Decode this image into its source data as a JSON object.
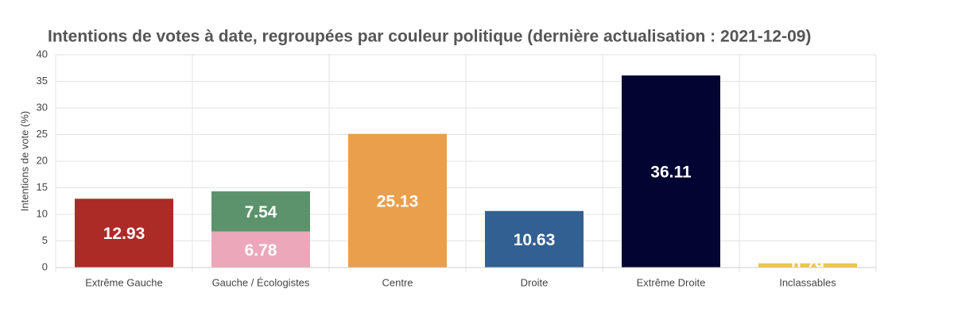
{
  "chart_data": {
    "type": "bar",
    "stacked": true,
    "title": "Intentions de votes à date, regroupées par couleur politique (dernière actualisation : 2021-12-09)",
    "y_label": "Intentions de vote (%)",
    "categories": [
      "Extrême Gauche",
      "Gauche / Écologistes",
      "Centre",
      "Droite",
      "Extrême Droite",
      "Inclassables"
    ],
    "series": [
      {
        "colors": [
          "#ac2b27",
          "#eda7bb",
          "#e99f4b",
          "#336093",
          "#020432",
          "#efc44c"
        ],
        "values": [
          12.93,
          6.78,
          25.13,
          10.63,
          36.11,
          0.79
        ]
      },
      {
        "color": "#5c936c",
        "values": [
          null,
          7.54,
          null,
          null,
          null,
          null
        ]
      }
    ],
    "ylim": [
      0,
      40
    ],
    "yticks": [
      0,
      5,
      10,
      15,
      20,
      25,
      30,
      35,
      40
    ],
    "grid": true
  }
}
